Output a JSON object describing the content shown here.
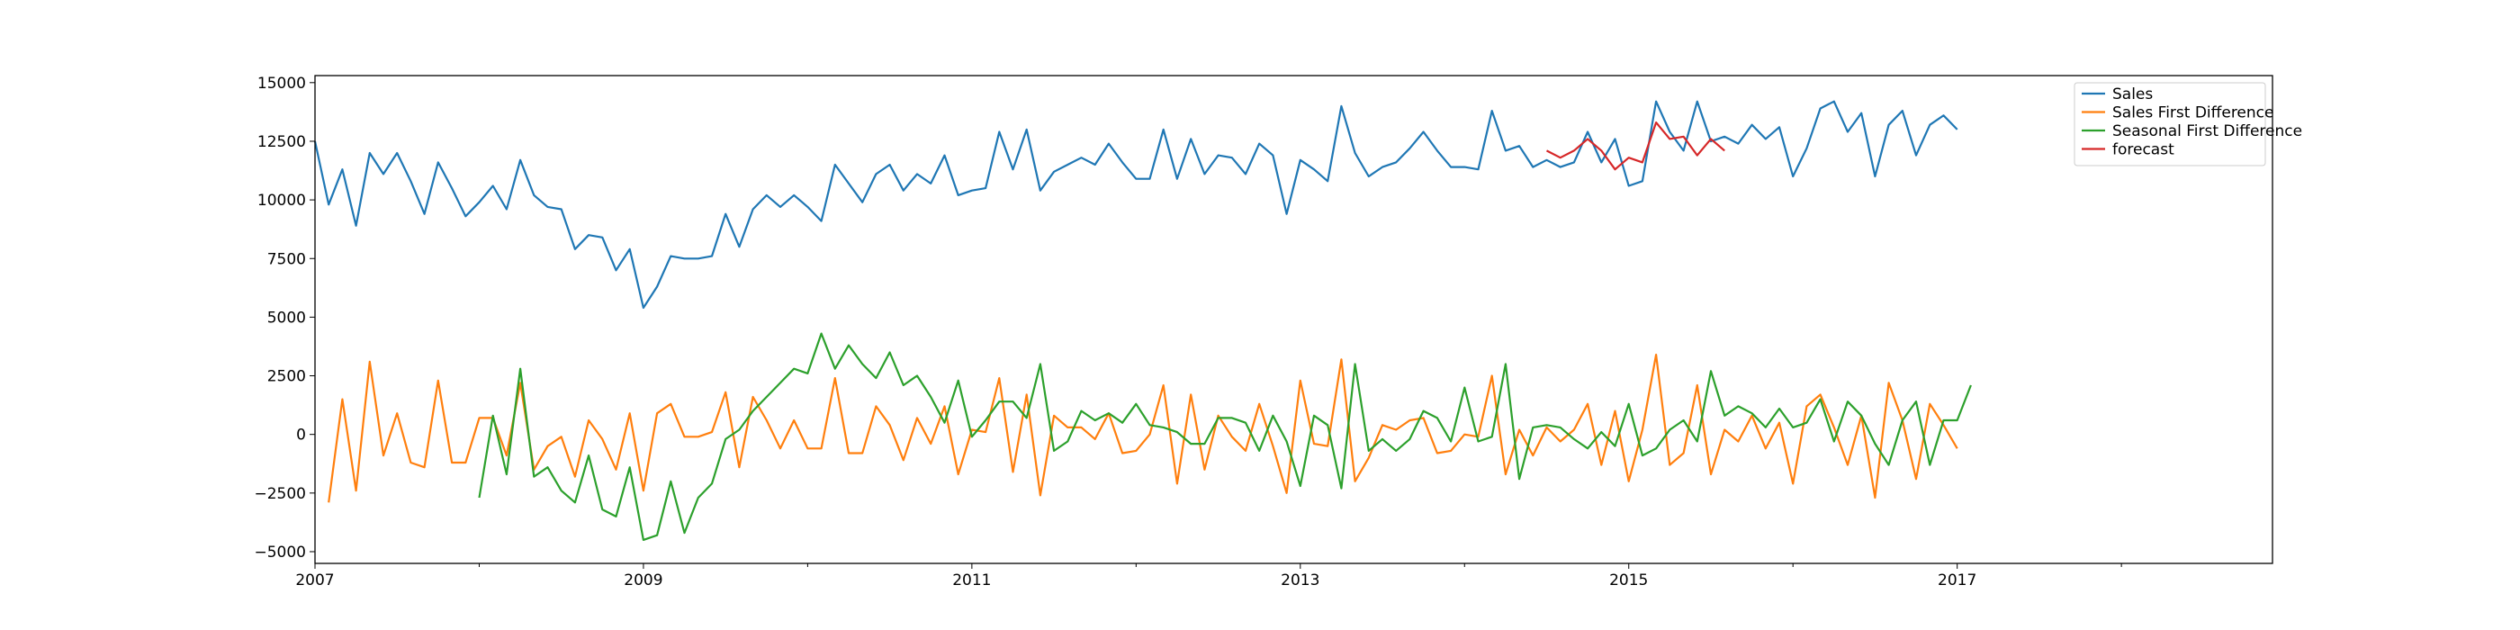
{
  "chart_data": {
    "type": "line",
    "title": "",
    "xlabel": "",
    "ylabel": "",
    "xlim": [
      2007.0,
      2018.92
    ],
    "ylim": [
      -5500,
      15300
    ],
    "xticks": [
      2007,
      2009,
      2011,
      2013,
      2015,
      2017
    ],
    "xtick_labels": [
      "2007",
      "2009",
      "2011",
      "2013",
      "2015",
      "2017"
    ],
    "yticks": [
      -5000,
      -2500,
      0,
      2500,
      5000,
      7500,
      10000,
      12500,
      15000
    ],
    "ytick_labels": [
      "−5000",
      "−2500",
      "0",
      "2500",
      "5000",
      "7500",
      "10000",
      "12500",
      "15000"
    ],
    "legend_position": "top-right",
    "series": [
      {
        "name": "Sales",
        "color": "#1f77b4",
        "start_year": 2007,
        "start_month": 1,
        "values": [
          12500,
          9800,
          11300,
          8900,
          12000,
          11100,
          12000,
          10800,
          9400,
          11600,
          10500,
          9300,
          9900,
          10600,
          9600,
          11700,
          10200,
          9700,
          9600,
          7900,
          8500,
          8400,
          7000,
          7900,
          5400,
          6300,
          7600,
          7500,
          7500,
          7600,
          9400,
          8000,
          9600,
          10200,
          9700,
          10200,
          9700,
          9100,
          11500,
          10700,
          9900,
          11100,
          11500,
          10400,
          11100,
          10700,
          11900,
          10200,
          10400,
          10500,
          12900,
          11300,
          13000,
          10400,
          11200,
          11500,
          11800,
          11500,
          12400,
          11600,
          10900,
          10900,
          13000,
          10900,
          12600,
          11100,
          11900,
          11800,
          11100,
          12400,
          11900,
          9400,
          11700,
          11300,
          10800,
          14000,
          12000,
          11000,
          11400,
          11600,
          12200,
          12900,
          12100,
          11400,
          11400,
          11300,
          13800,
          12100,
          12300,
          11400,
          11700,
          11400,
          11600,
          12900,
          11600,
          12600,
          10600,
          10800,
          14200,
          12900,
          12100,
          14200,
          12500,
          12700,
          12400,
          13200,
          12600,
          13100,
          11000,
          12200,
          13900,
          14200,
          12900,
          13700,
          11000,
          13200,
          13800,
          11900,
          13200,
          13600,
          13000
        ]
      },
      {
        "name": "Sales First Difference",
        "color": "#ff7f0e",
        "start_year": 2007,
        "start_month": 2,
        "values": [
          -2900,
          1500,
          -2400,
          3100,
          -900,
          900,
          -1200,
          -1400,
          2300,
          -1200,
          -1200,
          700,
          700,
          -900,
          2200,
          -1500,
          -500,
          -100,
          -1800,
          600,
          -200,
          -1500,
          900,
          -2400,
          900,
          1300,
          -100,
          -100,
          100,
          1800,
          -1400,
          1600,
          600,
          -600,
          600,
          -600,
          -600,
          2400,
          -800,
          -800,
          1200,
          400,
          -1100,
          700,
          -400,
          1200,
          -1700,
          200,
          100,
          2400,
          -1600,
          1700,
          -2600,
          800,
          300,
          300,
          -200,
          900,
          -800,
          -700,
          0,
          2100,
          -2100,
          1700,
          -1500,
          800,
          -100,
          -700,
          1300,
          -500,
          -2500,
          2300,
          -400,
          -500,
          3200,
          -2000,
          -1000,
          400,
          200,
          600,
          700,
          -800,
          -700,
          0,
          -100,
          2500,
          -1700,
          200,
          -900,
          300,
          -300,
          200,
          1300,
          -1300,
          1000,
          -2000,
          200,
          3400,
          -1300,
          -800,
          2100,
          -1700,
          200,
          -300,
          800,
          -600,
          500,
          -2100,
          1200,
          1700,
          300,
          -1300,
          800,
          -2700,
          2200,
          600,
          -1900,
          1300,
          400,
          -600
        ]
      },
      {
        "name": "Seasonal First Difference",
        "color": "#2ca02c",
        "start_year": 2008,
        "start_month": 1,
        "values": [
          -2700,
          800,
          -1700,
          2800,
          -1800,
          -1400,
          -2400,
          -2900,
          -900,
          -3200,
          -3500,
          -1400,
          -4500,
          -4300,
          -2000,
          -4200,
          -2700,
          -2100,
          -200,
          200,
          1000,
          1600,
          2200,
          2800,
          2600,
          4300,
          2800,
          3800,
          3000,
          2400,
          3500,
          2100,
          2500,
          1600,
          500,
          2300,
          -100,
          600,
          1400,
          1400,
          700,
          3000,
          -700,
          -300,
          1000,
          600,
          900,
          500,
          1300,
          400,
          300,
          100,
          -400,
          -400,
          700,
          700,
          500,
          -700,
          800,
          -300,
          -2200,
          800,
          400,
          -2300,
          3000,
          -700,
          -200,
          -700,
          -200,
          1000,
          700,
          -300,
          2000,
          -300,
          -100,
          3000,
          -1900,
          300,
          400,
          300,
          -200,
          -600,
          100,
          -500,
          1300,
          -900,
          -600,
          200,
          600,
          -300,
          2700,
          800,
          1200,
          900,
          300,
          1100,
          300,
          500,
          1500,
          -300,
          1400,
          800,
          -400,
          -1300,
          600,
          1400,
          -1300,
          600,
          600,
          2100
        ]
      },
      {
        "name": "forecast",
        "color": "#d62728",
        "start_year": 2014,
        "start_month": 7,
        "values": [
          12100,
          11800,
          12100,
          12600,
          12100,
          11300,
          11800,
          11600,
          13300,
          12600,
          12700,
          11900,
          12600,
          12100
        ]
      }
    ]
  }
}
